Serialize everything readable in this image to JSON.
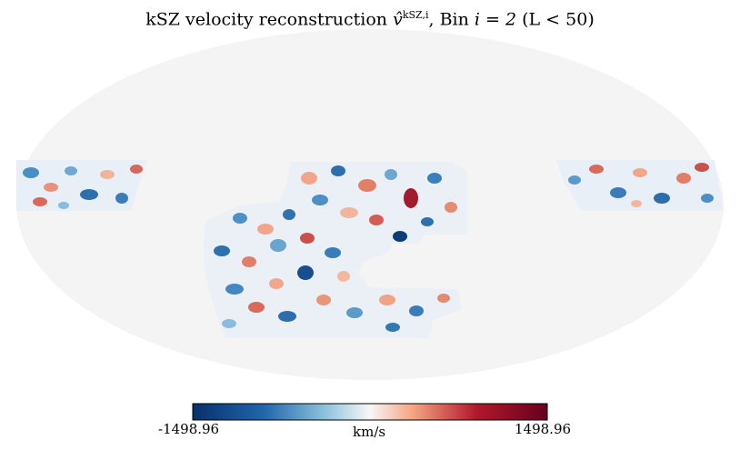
{
  "title": {
    "prefix": "kSZ velocity reconstruction ",
    "symbol": "v̂",
    "superscript": "kSZ,i",
    "suffix": ", Bin ",
    "bin_expr": "i = 2",
    "cut": "(L < 50)"
  },
  "projection": "mollweide",
  "background_color": "#f4f4f4",
  "colormap": {
    "name": "RdBu_r",
    "min_label": "-1498.96",
    "max_label": "1498.96",
    "unit": "km/s",
    "min_color": "#08306b",
    "mid_color": "#f7f7f7",
    "max_color": "#67001f"
  }
}
